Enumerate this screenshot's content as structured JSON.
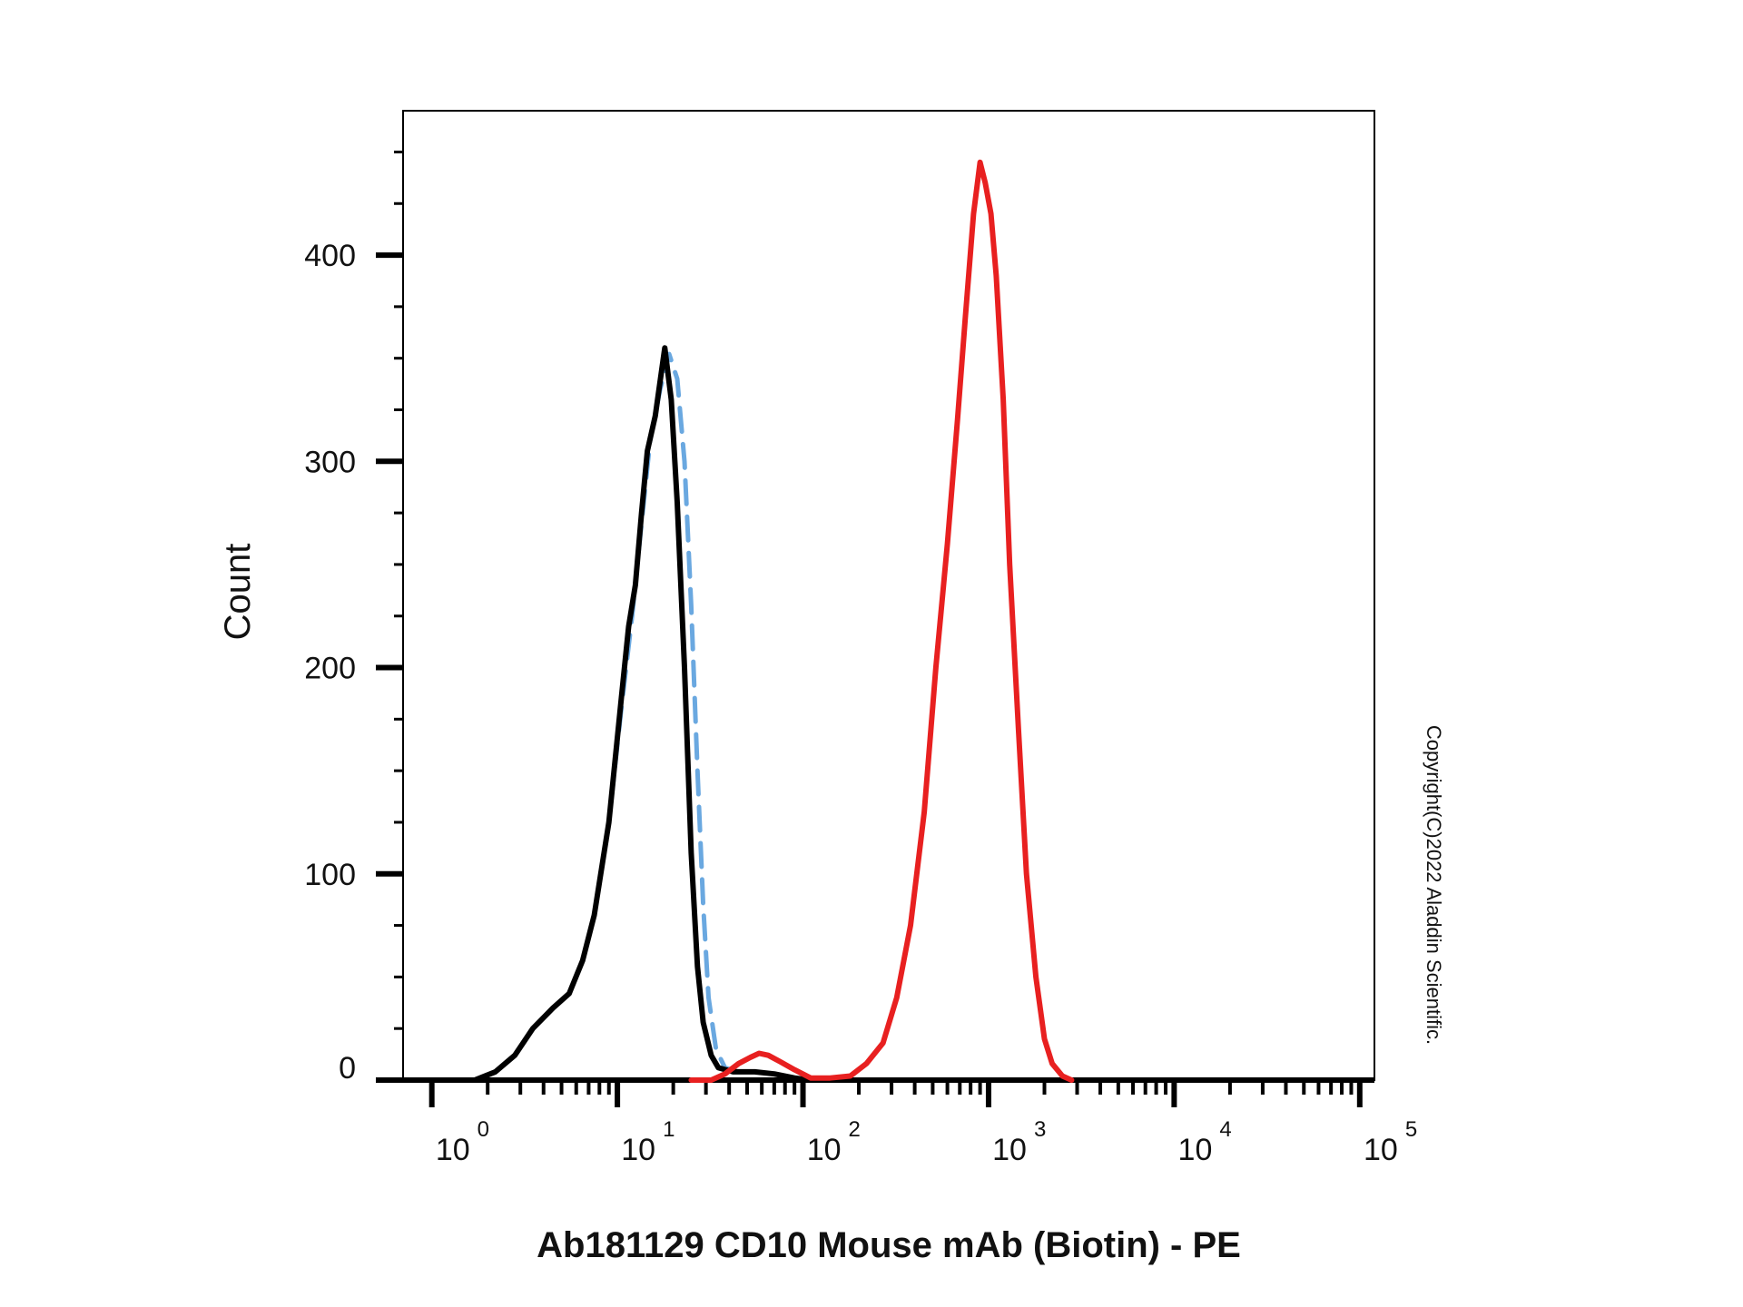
{
  "chart_data": {
    "type": "line",
    "title": "",
    "xlabel": "Ab181129 CD10 Mouse mAb (Biotin) - PE",
    "ylabel": "Count",
    "xscale": "log",
    "xlim": [
      0.7,
      120000
    ],
    "ylim": [
      0,
      470
    ],
    "grid": false,
    "legend": "none",
    "y_ticks": [
      {
        "value": 0,
        "label": "0"
      },
      {
        "value": 100,
        "label": "100"
      },
      {
        "value": 200,
        "label": "200"
      },
      {
        "value": 300,
        "label": "300"
      },
      {
        "value": 400,
        "label": "400"
      }
    ],
    "x_ticks": [
      {
        "value": 1,
        "base": "10",
        "exp": "0"
      },
      {
        "value": 10,
        "base": "10",
        "exp": "1"
      },
      {
        "value": 100,
        "base": "10",
        "exp": "2"
      },
      {
        "value": 1000,
        "base": "10",
        "exp": "3"
      },
      {
        "value": 10000,
        "base": "10",
        "exp": "4"
      },
      {
        "value": 100000,
        "base": "10",
        "exp": "5"
      }
    ],
    "series": [
      {
        "color": "#6aa8e0",
        "style": "dashed",
        "points": [
          [
            1.7,
            0
          ],
          [
            2.2,
            4
          ],
          [
            2.8,
            12
          ],
          [
            3.5,
            25
          ],
          [
            4.5,
            35
          ],
          [
            5.5,
            42
          ],
          [
            6.5,
            58
          ],
          [
            7.5,
            80
          ],
          [
            9,
            125
          ],
          [
            10.5,
            180
          ],
          [
            12,
            225
          ],
          [
            13.5,
            270
          ],
          [
            15,
            310
          ],
          [
            17,
            335
          ],
          [
            19,
            352
          ],
          [
            21,
            340
          ],
          [
            23,
            300
          ],
          [
            25,
            230
          ],
          [
            27,
            150
          ],
          [
            29,
            85
          ],
          [
            31,
            40
          ],
          [
            34,
            15
          ],
          [
            38,
            6
          ],
          [
            45,
            4
          ],
          [
            55,
            4
          ],
          [
            70,
            3
          ],
          [
            90,
            1
          ],
          [
            110,
            0
          ]
        ]
      },
      {
        "color": "#000000",
        "style": "solid",
        "points": [
          [
            1.7,
            0
          ],
          [
            2.2,
            4
          ],
          [
            2.8,
            12
          ],
          [
            3.5,
            25
          ],
          [
            4.5,
            35
          ],
          [
            5.5,
            42
          ],
          [
            6.5,
            58
          ],
          [
            7.5,
            80
          ],
          [
            9,
            125
          ],
          [
            10.5,
            185
          ],
          [
            11.5,
            220
          ],
          [
            12.5,
            240
          ],
          [
            13.5,
            275
          ],
          [
            14.5,
            305
          ],
          [
            16,
            322
          ],
          [
            18,
            355
          ],
          [
            19.5,
            330
          ],
          [
            21,
            280
          ],
          [
            23,
            200
          ],
          [
            25,
            110
          ],
          [
            27,
            55
          ],
          [
            29,
            28
          ],
          [
            32,
            12
          ],
          [
            35,
            6
          ],
          [
            42,
            4
          ],
          [
            55,
            4
          ],
          [
            70,
            3
          ],
          [
            90,
            1
          ],
          [
            110,
            0
          ]
        ]
      },
      {
        "color": "#e82020",
        "style": "solid",
        "points": [
          [
            25,
            0
          ],
          [
            32,
            0
          ],
          [
            38,
            3
          ],
          [
            45,
            8
          ],
          [
            52,
            11
          ],
          [
            58,
            13
          ],
          [
            65,
            12
          ],
          [
            75,
            9
          ],
          [
            90,
            5
          ],
          [
            110,
            1
          ],
          [
            140,
            1
          ],
          [
            180,
            2
          ],
          [
            220,
            8
          ],
          [
            270,
            18
          ],
          [
            320,
            40
          ],
          [
            380,
            75
          ],
          [
            450,
            130
          ],
          [
            520,
            200
          ],
          [
            600,
            260
          ],
          [
            680,
            320
          ],
          [
            750,
            370
          ],
          [
            830,
            420
          ],
          [
            900,
            445
          ],
          [
            960,
            435
          ],
          [
            1030,
            420
          ],
          [
            1100,
            390
          ],
          [
            1200,
            330
          ],
          [
            1300,
            250
          ],
          [
            1450,
            170
          ],
          [
            1600,
            100
          ],
          [
            1800,
            50
          ],
          [
            2000,
            20
          ],
          [
            2200,
            8
          ],
          [
            2500,
            2
          ],
          [
            2800,
            0
          ]
        ]
      }
    ]
  },
  "watermark": "Copyright(C)2022 Aladdin Scientific."
}
